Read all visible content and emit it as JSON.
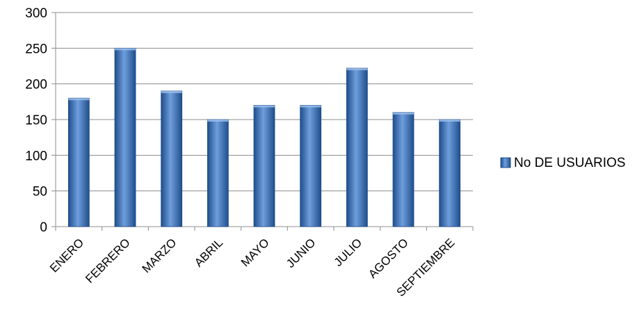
{
  "chart_data": {
    "type": "bar",
    "title": "",
    "xlabel": "",
    "ylabel": "",
    "categories": [
      "ENERO",
      "FEBRERO",
      "MARZO",
      "ABRIL",
      "MAYO",
      "JUNIO",
      "JULIO",
      "AGOSTO",
      "SEPTIEMBRE"
    ],
    "series": [
      {
        "name": "No DE USUARIOS",
        "values": [
          180,
          250,
          190,
          150,
          170,
          170,
          222,
          160,
          150
        ]
      }
    ],
    "ylim": [
      0,
      300
    ],
    "yticks": [
      "0",
      "50",
      "100",
      "150",
      "200",
      "250",
      "300"
    ],
    "grid": true,
    "legend_position": "right",
    "colors": {
      "bar_dark": "#1f4e8c",
      "bar_mid": "#3f78c4",
      "bar_light": "#7aa6e0",
      "grid": "#8c8c8c"
    }
  }
}
